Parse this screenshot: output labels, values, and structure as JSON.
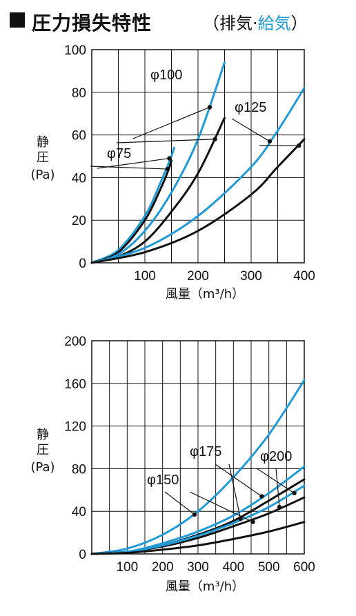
{
  "header": {
    "title": "圧力損失特性",
    "subtitle_open": "（排気·",
    "subtitle_blue": "給気",
    "subtitle_close": "）"
  },
  "colors": {
    "exhaust": "#111111",
    "supply": "#1f9ad6",
    "grid": "#111111"
  },
  "chart_data": [
    {
      "type": "line",
      "ylabel_lines": [
        "静",
        "圧",
        "(Pa)"
      ],
      "xlabel": "風量（m³/h）",
      "xlim": [
        0,
        400
      ],
      "ylim": [
        0,
        100
      ],
      "xticks": [
        100,
        200,
        300,
        400
      ],
      "yticks": [
        0,
        20,
        40,
        60,
        80,
        100
      ],
      "grid": true,
      "annotations": [
        {
          "text": "φ75",
          "pointer_series": [
            0,
            1
          ]
        },
        {
          "text": "φ100",
          "pointer_series": [
            2,
            3
          ]
        },
        {
          "text": "φ125",
          "pointer_series": [
            4,
            5
          ]
        }
      ],
      "series": [
        {
          "name": "φ75",
          "kind": "supply",
          "x": [
            0,
            50,
            100,
            130,
            150,
            155
          ],
          "y": [
            0,
            6,
            22,
            38,
            50,
            54
          ]
        },
        {
          "name": "φ75",
          "kind": "exhaust",
          "x": [
            0,
            50,
            100,
            130,
            145,
            150
          ],
          "y": [
            0,
            5,
            20,
            35,
            44,
            48
          ]
        },
        {
          "name": "φ100",
          "kind": "supply",
          "x": [
            0,
            50,
            100,
            150,
            200,
            250
          ],
          "y": [
            0,
            4,
            15,
            33,
            58,
            94
          ]
        },
        {
          "name": "φ100",
          "kind": "exhaust",
          "x": [
            0,
            50,
            100,
            150,
            200,
            250
          ],
          "y": [
            0,
            3,
            10,
            24,
            42,
            68
          ]
        },
        {
          "name": "φ125",
          "kind": "supply",
          "x": [
            0,
            100,
            200,
            300,
            350,
            400
          ],
          "y": [
            0,
            7,
            22,
            45,
            62,
            82
          ]
        },
        {
          "name": "φ125",
          "kind": "exhaust",
          "x": [
            0,
            100,
            200,
            300,
            350,
            400
          ],
          "y": [
            0,
            5,
            15,
            32,
            45,
            58
          ]
        }
      ]
    },
    {
      "type": "line",
      "ylabel_lines": [
        "静",
        "圧",
        "(Pa)"
      ],
      "xlabel": "風量（m³/h）",
      "xlim": [
        0,
        600
      ],
      "ylim": [
        0,
        200
      ],
      "xticks": [
        100,
        200,
        300,
        400,
        500,
        600
      ],
      "yticks": [
        0,
        40,
        80,
        120,
        160,
        200
      ],
      "grid": true,
      "annotations": [
        {
          "text": "φ150",
          "pointer_series": [
            0,
            1
          ]
        },
        {
          "text": "φ175",
          "pointer_series": [
            2,
            3
          ]
        },
        {
          "text": "φ200",
          "pointer_series": [
            4,
            5
          ]
        }
      ],
      "series": [
        {
          "name": "φ150",
          "kind": "supply",
          "x": [
            0,
            100,
            200,
            300,
            400,
            500,
            600
          ],
          "y": [
            0,
            5,
            18,
            40,
            72,
            112,
            163
          ]
        },
        {
          "name": "φ150",
          "kind": "exhaust",
          "x": [
            0,
            100,
            200,
            300,
            400,
            500,
            600
          ],
          "y": [
            0,
            2,
            8,
            18,
            31,
            50,
            70
          ]
        },
        {
          "name": "φ175",
          "kind": "supply",
          "x": [
            0,
            100,
            200,
            300,
            400,
            500,
            600
          ],
          "y": [
            0,
            2,
            10,
            21,
            36,
            57,
            82
          ]
        },
        {
          "name": "φ175",
          "kind": "exhaust",
          "x": [
            0,
            100,
            200,
            300,
            400,
            500,
            600
          ],
          "y": [
            0,
            2,
            7,
            15,
            26,
            38,
            53
          ]
        },
        {
          "name": "φ200",
          "kind": "supply",
          "x": [
            0,
            100,
            200,
            300,
            400,
            500,
            600
          ],
          "y": [
            0,
            2,
            8,
            17,
            29,
            44,
            64
          ]
        },
        {
          "name": "φ200",
          "kind": "exhaust",
          "x": [
            0,
            100,
            200,
            300,
            400,
            500,
            600
          ],
          "y": [
            0,
            1,
            4,
            8,
            14,
            21,
            30
          ]
        }
      ]
    }
  ]
}
